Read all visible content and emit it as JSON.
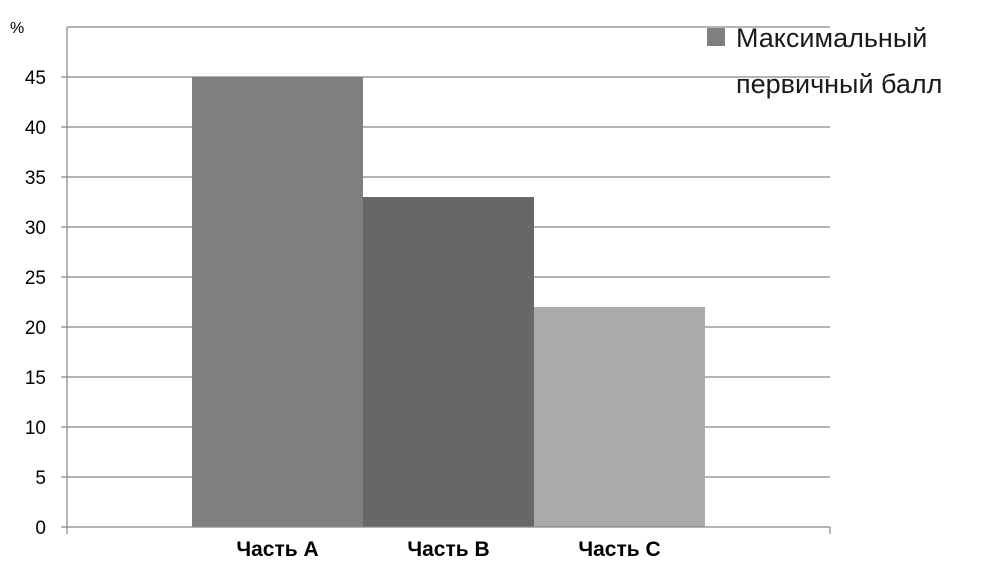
{
  "chart_data": {
    "type": "bar",
    "ylabel": "%",
    "ylim": [
      0,
      50
    ],
    "yticks": [
      0,
      5,
      10,
      15,
      20,
      25,
      30,
      35,
      40,
      45
    ],
    "grid": true,
    "categories": [
      "Часть А",
      "Часть В",
      "Часть С"
    ],
    "series": [
      {
        "name": "Максимальный первичный балл",
        "values": [
          45,
          33,
          22
        ]
      }
    ],
    "bar_colors": [
      "#7f7f7f",
      "#676767",
      "#ababab"
    ],
    "legend": {
      "position": "top-right",
      "lines": [
        "Максимальный",
        "первичный балл"
      ],
      "marker_color": "#7f7f7f"
    }
  }
}
